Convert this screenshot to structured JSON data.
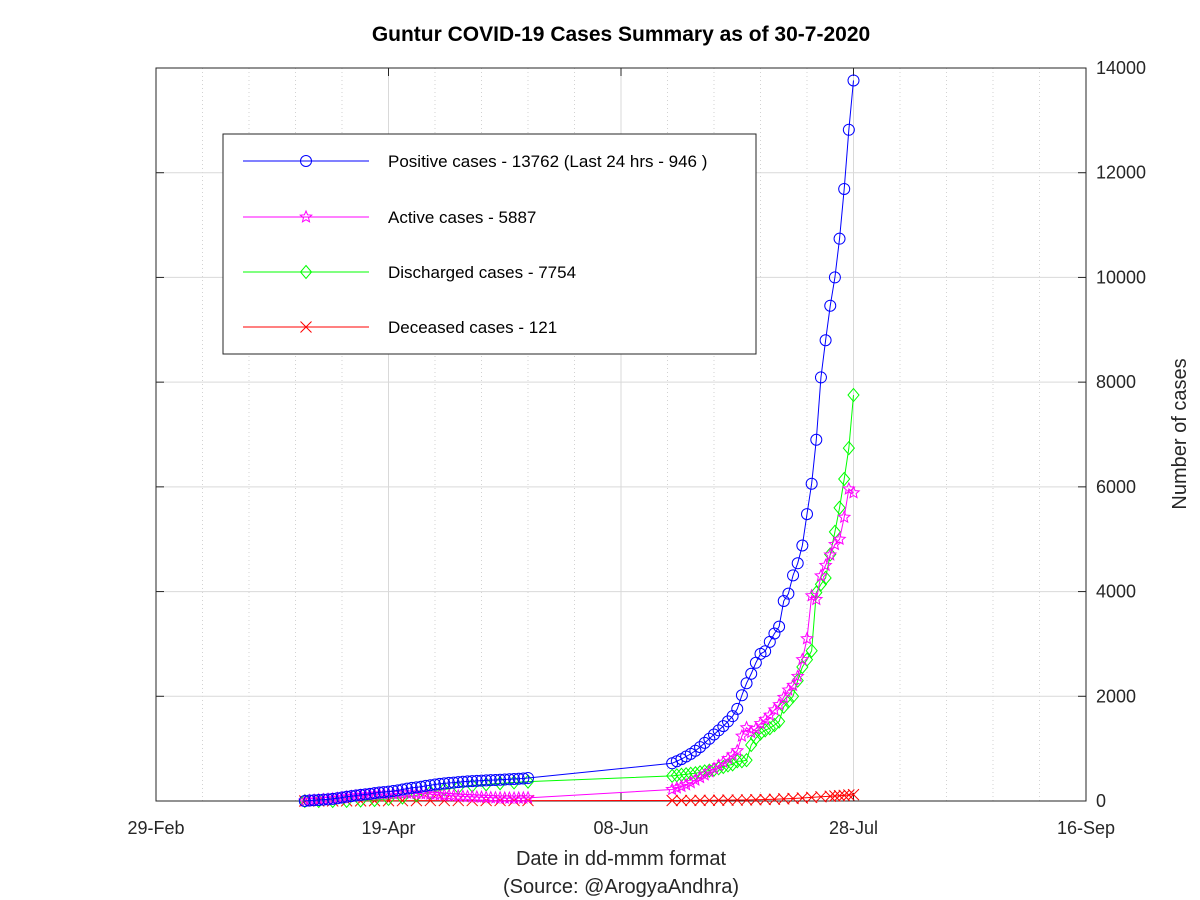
{
  "chart_data": {
    "type": "line",
    "title": "Guntur COVID-19 Cases Summary as of 30-7-2020",
    "xlabel": "Date in dd-mmm format",
    "xlabel_sub": "(Source: @ArogyaAndhra)",
    "ylabel": "Number of cases",
    "x_tick_labels": [
      "29-Feb",
      "19-Apr",
      "08-Jun",
      "28-Jul",
      "16-Sep"
    ],
    "x_tick_dates": [
      "2020-02-29",
      "2020-04-19",
      "2020-06-08",
      "2020-07-28",
      "2020-09-16"
    ],
    "xlim": [
      "2020-02-29",
      "2020-09-16"
    ],
    "y_tick_labels": [
      "0",
      "2000",
      "4000",
      "6000",
      "8000",
      "10000",
      "12000",
      "14000"
    ],
    "ylim": [
      0,
      14000
    ],
    "y_axis_side": "right",
    "grid": true,
    "minor_grid": true,
    "legend_position": "top-left",
    "series": [
      {
        "name": "Positive cases - 13762 (Last 24 hrs - 946 )",
        "color": "#0000ff",
        "marker": "circle",
        "points": [
          [
            "2020-04-01",
            0
          ],
          [
            "2020-04-02",
            9
          ],
          [
            "2020-04-03",
            14
          ],
          [
            "2020-04-04",
            20
          ],
          [
            "2020-04-05",
            26
          ],
          [
            "2020-04-06",
            32
          ],
          [
            "2020-04-07",
            41
          ],
          [
            "2020-04-08",
            52
          ],
          [
            "2020-04-09",
            66
          ],
          [
            "2020-04-10",
            80
          ],
          [
            "2020-04-11",
            93
          ],
          [
            "2020-04-12",
            105
          ],
          [
            "2020-04-13",
            116
          ],
          [
            "2020-04-14",
            126
          ],
          [
            "2020-04-15",
            135
          ],
          [
            "2020-04-16",
            150
          ],
          [
            "2020-04-17",
            162
          ],
          [
            "2020-04-18",
            170
          ],
          [
            "2020-04-19",
            180
          ],
          [
            "2020-04-20",
            190
          ],
          [
            "2020-04-21",
            204
          ],
          [
            "2020-04-22",
            220
          ],
          [
            "2020-04-23",
            236
          ],
          [
            "2020-04-24",
            250
          ],
          [
            "2020-04-25",
            260
          ],
          [
            "2020-04-26",
            272
          ],
          [
            "2020-04-27",
            288
          ],
          [
            "2020-04-28",
            302
          ],
          [
            "2020-04-29",
            315
          ],
          [
            "2020-04-30",
            326
          ],
          [
            "2020-05-01",
            336
          ],
          [
            "2020-05-02",
            345
          ],
          [
            "2020-05-03",
            352
          ],
          [
            "2020-05-04",
            360
          ],
          [
            "2020-05-05",
            368
          ],
          [
            "2020-05-06",
            374
          ],
          [
            "2020-05-07",
            380
          ],
          [
            "2020-05-08",
            385
          ],
          [
            "2020-05-09",
            390
          ],
          [
            "2020-05-10",
            394
          ],
          [
            "2020-05-11",
            398
          ],
          [
            "2020-05-12",
            401
          ],
          [
            "2020-05-13",
            405
          ],
          [
            "2020-05-14",
            410
          ],
          [
            "2020-05-15",
            415
          ],
          [
            "2020-05-16",
            420
          ],
          [
            "2020-05-17",
            425
          ],
          [
            "2020-05-18",
            430
          ],
          [
            "2020-05-19",
            440
          ],
          [
            "2020-06-19",
            720
          ],
          [
            "2020-06-20",
            760
          ],
          [
            "2020-06-21",
            800
          ],
          [
            "2020-06-22",
            850
          ],
          [
            "2020-06-23",
            900
          ],
          [
            "2020-06-24",
            960
          ],
          [
            "2020-06-25",
            1030
          ],
          [
            "2020-06-26",
            1110
          ],
          [
            "2020-06-27",
            1190
          ],
          [
            "2020-06-28",
            1270
          ],
          [
            "2020-06-29",
            1350
          ],
          [
            "2020-06-30",
            1430
          ],
          [
            "2020-07-01",
            1520
          ],
          [
            "2020-07-02",
            1620
          ],
          [
            "2020-07-03",
            1760
          ],
          [
            "2020-07-04",
            2020
          ],
          [
            "2020-07-05",
            2250
          ],
          [
            "2020-07-06",
            2430
          ],
          [
            "2020-07-07",
            2640
          ],
          [
            "2020-07-08",
            2810
          ],
          [
            "2020-07-09",
            2860
          ],
          [
            "2020-07-10",
            3040
          ],
          [
            "2020-07-11",
            3200
          ],
          [
            "2020-07-12",
            3330
          ],
          [
            "2020-07-13",
            3820
          ],
          [
            "2020-07-14",
            3960
          ],
          [
            "2020-07-15",
            4310
          ],
          [
            "2020-07-16",
            4540
          ],
          [
            "2020-07-17",
            4880
          ],
          [
            "2020-07-18",
            5480
          ],
          [
            "2020-07-19",
            6060
          ],
          [
            "2020-07-20",
            6900
          ],
          [
            "2020-07-21",
            8090
          ],
          [
            "2020-07-22",
            8800
          ],
          [
            "2020-07-23",
            9460
          ],
          [
            "2020-07-24",
            10000
          ],
          [
            "2020-07-25",
            10740
          ],
          [
            "2020-07-26",
            11690
          ],
          [
            "2020-07-27",
            12820
          ],
          [
            "2020-07-28",
            13762
          ]
        ]
      },
      {
        "name": "Active cases - 5887",
        "color": "#ff00ff",
        "marker": "star",
        "points": [
          [
            "2020-04-01",
            0
          ],
          [
            "2020-04-02",
            9
          ],
          [
            "2020-04-03",
            14
          ],
          [
            "2020-04-04",
            20
          ],
          [
            "2020-04-05",
            26
          ],
          [
            "2020-04-06",
            32
          ],
          [
            "2020-04-07",
            40
          ],
          [
            "2020-04-08",
            50
          ],
          [
            "2020-04-09",
            62
          ],
          [
            "2020-04-10",
            75
          ],
          [
            "2020-04-11",
            86
          ],
          [
            "2020-04-12",
            96
          ],
          [
            "2020-04-13",
            105
          ],
          [
            "2020-04-14",
            112
          ],
          [
            "2020-04-15",
            118
          ],
          [
            "2020-04-16",
            128
          ],
          [
            "2020-04-17",
            134
          ],
          [
            "2020-04-18",
            136
          ],
          [
            "2020-04-19",
            138
          ],
          [
            "2020-04-20",
            140
          ],
          [
            "2020-04-21",
            145
          ],
          [
            "2020-04-22",
            150
          ],
          [
            "2020-04-23",
            152
          ],
          [
            "2020-04-24",
            150
          ],
          [
            "2020-04-25",
            146
          ],
          [
            "2020-04-26",
            140
          ],
          [
            "2020-04-27",
            138
          ],
          [
            "2020-04-28",
            132
          ],
          [
            "2020-04-29",
            125
          ],
          [
            "2020-04-30",
            118
          ],
          [
            "2020-05-01",
            110
          ],
          [
            "2020-05-02",
            104
          ],
          [
            "2020-05-03",
            98
          ],
          [
            "2020-05-04",
            92
          ],
          [
            "2020-05-05",
            88
          ],
          [
            "2020-05-06",
            84
          ],
          [
            "2020-05-07",
            80
          ],
          [
            "2020-05-08",
            76
          ],
          [
            "2020-05-09",
            72
          ],
          [
            "2020-05-10",
            68
          ],
          [
            "2020-05-11",
            64
          ],
          [
            "2020-05-12",
            60
          ],
          [
            "2020-05-13",
            58
          ],
          [
            "2020-05-14",
            56
          ],
          [
            "2020-05-15",
            55
          ],
          [
            "2020-05-16",
            55
          ],
          [
            "2020-05-17",
            56
          ],
          [
            "2020-05-18",
            58
          ],
          [
            "2020-05-19",
            60
          ],
          [
            "2020-06-19",
            220
          ],
          [
            "2020-06-20",
            250
          ],
          [
            "2020-06-21",
            280
          ],
          [
            "2020-06-22",
            310
          ],
          [
            "2020-06-23",
            350
          ],
          [
            "2020-06-24",
            400
          ],
          [
            "2020-06-25",
            450
          ],
          [
            "2020-06-26",
            500
          ],
          [
            "2020-06-27",
            560
          ],
          [
            "2020-06-28",
            620
          ],
          [
            "2020-06-29",
            680
          ],
          [
            "2020-06-30",
            740
          ],
          [
            "2020-07-01",
            810
          ],
          [
            "2020-07-02",
            880
          ],
          [
            "2020-07-03",
            960
          ],
          [
            "2020-07-04",
            1240
          ],
          [
            "2020-07-05",
            1400
          ],
          [
            "2020-07-06",
            1310
          ],
          [
            "2020-07-07",
            1380
          ],
          [
            "2020-07-08",
            1480
          ],
          [
            "2020-07-09",
            1560
          ],
          [
            "2020-07-10",
            1640
          ],
          [
            "2020-07-11",
            1740
          ],
          [
            "2020-07-12",
            1840
          ],
          [
            "2020-07-13",
            1980
          ],
          [
            "2020-07-14",
            2120
          ],
          [
            "2020-07-15",
            2210
          ],
          [
            "2020-07-16",
            2380
          ],
          [
            "2020-07-17",
            2700
          ],
          [
            "2020-07-18",
            3100
          ],
          [
            "2020-07-19",
            3920
          ],
          [
            "2020-07-20",
            3850
          ],
          [
            "2020-07-21",
            4300
          ],
          [
            "2020-07-22",
            4500
          ],
          [
            "2020-07-23",
            4700
          ],
          [
            "2020-07-24",
            4900
          ],
          [
            "2020-07-25",
            5000
          ],
          [
            "2020-07-26",
            5420
          ],
          [
            "2020-07-27",
            5960
          ],
          [
            "2020-07-28",
            5887
          ]
        ]
      },
      {
        "name": "Discharged cases - 7754",
        "color": "#00ff00",
        "marker": "diamond",
        "points": [
          [
            "2020-04-01",
            0
          ],
          [
            "2020-04-04",
            0
          ],
          [
            "2020-04-07",
            1
          ],
          [
            "2020-04-10",
            4
          ],
          [
            "2020-04-13",
            10
          ],
          [
            "2020-04-16",
            20
          ],
          [
            "2020-04-19",
            40
          ],
          [
            "2020-04-22",
            68
          ],
          [
            "2020-04-25",
            110
          ],
          [
            "2020-04-28",
            165
          ],
          [
            "2020-05-01",
            220
          ],
          [
            "2020-05-04",
            262
          ],
          [
            "2020-05-07",
            295
          ],
          [
            "2020-05-10",
            318
          ],
          [
            "2020-05-13",
            340
          ],
          [
            "2020-05-16",
            355
          ],
          [
            "2020-05-19",
            370
          ],
          [
            "2020-06-19",
            480
          ],
          [
            "2020-06-20",
            490
          ],
          [
            "2020-06-21",
            500
          ],
          [
            "2020-06-22",
            510
          ],
          [
            "2020-06-23",
            520
          ],
          [
            "2020-06-24",
            530
          ],
          [
            "2020-06-25",
            548
          ],
          [
            "2020-06-26",
            565
          ],
          [
            "2020-06-27",
            580
          ],
          [
            "2020-06-28",
            600
          ],
          [
            "2020-06-29",
            625
          ],
          [
            "2020-06-30",
            650
          ],
          [
            "2020-07-01",
            680
          ],
          [
            "2020-07-02",
            700
          ],
          [
            "2020-07-03",
            760
          ],
          [
            "2020-07-04",
            760
          ],
          [
            "2020-07-05",
            780
          ],
          [
            "2020-07-06",
            1070
          ],
          [
            "2020-07-07",
            1200
          ],
          [
            "2020-07-08",
            1290
          ],
          [
            "2020-07-09",
            1350
          ],
          [
            "2020-07-10",
            1390
          ],
          [
            "2020-07-11",
            1450
          ],
          [
            "2020-07-12",
            1520
          ],
          [
            "2020-07-13",
            1800
          ],
          [
            "2020-07-14",
            1900
          ],
          [
            "2020-07-15",
            2000
          ],
          [
            "2020-07-16",
            2300
          ],
          [
            "2020-07-17",
            2560
          ],
          [
            "2020-07-18",
            2700
          ],
          [
            "2020-07-19",
            2870
          ],
          [
            "2020-07-20",
            3980
          ],
          [
            "2020-07-21",
            4140
          ],
          [
            "2020-07-22",
            4260
          ],
          [
            "2020-07-23",
            4710
          ],
          [
            "2020-07-24",
            5140
          ],
          [
            "2020-07-25",
            5600
          ],
          [
            "2020-07-26",
            6150
          ],
          [
            "2020-07-27",
            6740
          ],
          [
            "2020-07-28",
            7754
          ]
        ]
      },
      {
        "name": "Deceased cases - 121",
        "color": "#ff0000",
        "marker": "x",
        "points": [
          [
            "2020-04-01",
            0
          ],
          [
            "2020-04-04",
            0
          ],
          [
            "2020-04-07",
            1
          ],
          [
            "2020-04-10",
            2
          ],
          [
            "2020-04-13",
            3
          ],
          [
            "2020-04-16",
            4
          ],
          [
            "2020-04-19",
            5
          ],
          [
            "2020-04-22",
            6
          ],
          [
            "2020-04-25",
            7
          ],
          [
            "2020-04-28",
            8
          ],
          [
            "2020-05-01",
            8
          ],
          [
            "2020-05-04",
            8
          ],
          [
            "2020-05-07",
            8
          ],
          [
            "2020-05-10",
            8
          ],
          [
            "2020-05-13",
            8
          ],
          [
            "2020-05-16",
            8
          ],
          [
            "2020-05-19",
            8
          ],
          [
            "2020-06-19",
            9
          ],
          [
            "2020-06-21",
            10
          ],
          [
            "2020-06-23",
            11
          ],
          [
            "2020-06-25",
            12
          ],
          [
            "2020-06-27",
            13
          ],
          [
            "2020-06-29",
            14
          ],
          [
            "2020-07-01",
            16
          ],
          [
            "2020-07-03",
            18
          ],
          [
            "2020-07-05",
            20
          ],
          [
            "2020-07-07",
            24
          ],
          [
            "2020-07-09",
            28
          ],
          [
            "2020-07-11",
            33
          ],
          [
            "2020-07-13",
            40
          ],
          [
            "2020-07-15",
            48
          ],
          [
            "2020-07-17",
            58
          ],
          [
            "2020-07-19",
            70
          ],
          [
            "2020-07-21",
            80
          ],
          [
            "2020-07-23",
            90
          ],
          [
            "2020-07-24",
            96
          ],
          [
            "2020-07-25",
            100
          ],
          [
            "2020-07-26",
            108
          ],
          [
            "2020-07-27",
            115
          ],
          [
            "2020-07-28",
            121
          ]
        ]
      }
    ]
  }
}
